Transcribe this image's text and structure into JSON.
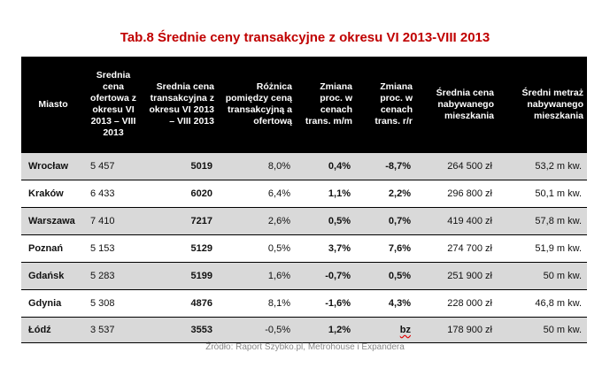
{
  "title": "Tab.8 Średnie ceny transakcyjne z okresu VI 2013-VIII 2013",
  "headers": {
    "city": "Miasto",
    "offer_price": "Srednia cena ofertowa z okresu VI 2013 – VIII 2013",
    "transaction_price": "Srednia cena transakcyjna z okresu VI 2013 – VIII 2013",
    "difference": "Różnica pomiędzy ceną transakcyjną a ofertową",
    "change_mm": "Zmiana proc. w cenach trans. m/m",
    "change_rr": "Zmiana proc. w cenach trans. r/r",
    "avg_price": "Średnia cena nabywanego mieszkania",
    "avg_area": "Średni metraż nabywanego mieszkania"
  },
  "rows": [
    {
      "city": "Wrocław",
      "offer": "5 457",
      "transaction": "5019",
      "difference": "8,0%",
      "change_mm": "0,4%",
      "change_rr": "-8,7%",
      "avg_price": "264 500 zł",
      "avg_area": "53,2 m kw."
    },
    {
      "city": "Kraków",
      "offer": "6 433",
      "transaction": "6020",
      "difference": "6,4%",
      "change_mm": "1,1%",
      "change_rr": "2,2%",
      "avg_price": "296 800 zł",
      "avg_area": "50,1 m kw."
    },
    {
      "city": "Warszawa",
      "offer": "7 410",
      "transaction": "7217",
      "difference": "2,6%",
      "change_mm": "0,5%",
      "change_rr": "0,7%",
      "avg_price": "419 400 zł",
      "avg_area": "57,8 m kw."
    },
    {
      "city": "Poznań",
      "offer": "5 153",
      "transaction": "5129",
      "difference": "0,5%",
      "change_mm": "3,7%",
      "change_rr": "7,6%",
      "avg_price": "274 700 zł",
      "avg_area": "51,9 m kw."
    },
    {
      "city": "Gdańsk",
      "offer": "5 283",
      "transaction": "5199",
      "difference": "1,6%",
      "change_mm": "-0,7%",
      "change_rr": "0,5%",
      "avg_price": "251 900 zł",
      "avg_area": "50 m kw."
    },
    {
      "city": "Gdynia",
      "offer": "5 308",
      "transaction": "4876",
      "difference": "8,1%",
      "change_mm": "-1,6%",
      "change_rr": "4,3%",
      "avg_price": "228 000 zł",
      "avg_area": "46,8 m kw."
    },
    {
      "city": "Łódź",
      "offer": "3 537",
      "transaction": "3553",
      "difference": "-0,5%",
      "change_mm": "1,2%",
      "change_rr": "bz",
      "avg_price": "178 900 zł",
      "avg_area": "50 m kw."
    }
  ],
  "source": "Źródło: Raport Szybko.pl, Metrohouse i Expandera",
  "colors": {
    "title": "#c00000",
    "header_bg": "#000000",
    "shaded_row": "#d9d9d9",
    "source_text": "#8a8a8a"
  }
}
